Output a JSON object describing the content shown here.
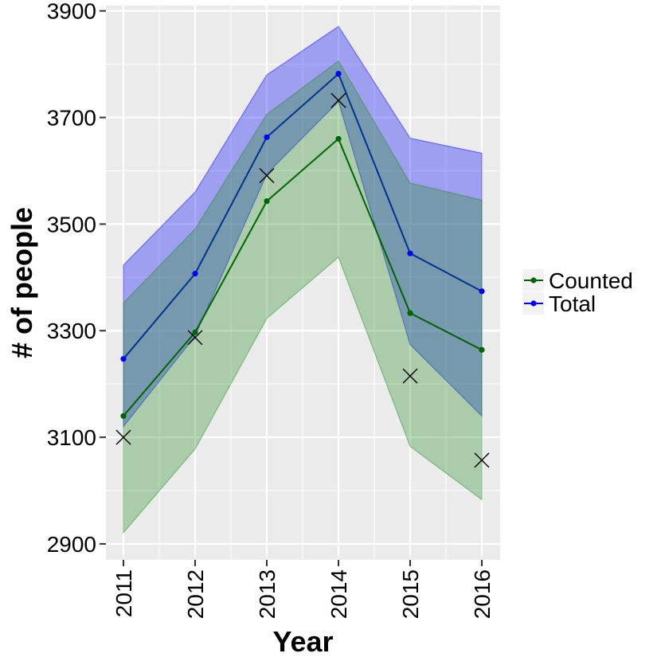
{
  "chart_data": {
    "type": "line",
    "xlabel": "Year",
    "ylabel": "# of people",
    "x": [
      "2011",
      "2012",
      "2013",
      "2014",
      "2015",
      "2016"
    ],
    "ylim": [
      2870,
      3910
    ],
    "y_ticks": [
      "2900",
      "3100",
      "3300",
      "3500",
      "3700",
      "3900"
    ],
    "grid": true,
    "panel_background": "#ebebeb",
    "legend_position": "right",
    "series": [
      {
        "name": "Counted",
        "color": "#006400",
        "band_color": "#228B22",
        "values": [
          3140,
          3297,
          3543,
          3660,
          3333,
          3264
        ],
        "lower": [
          2921,
          3078,
          3323,
          3438,
          3083,
          2983
        ],
        "upper": [
          3352,
          3491,
          3706,
          3806,
          3577,
          3545
        ]
      },
      {
        "name": "Total",
        "color": "#0000ff",
        "band_color": "#0000ff",
        "values": [
          3247,
          3407,
          3663,
          3782,
          3445,
          3374
        ],
        "lower": [
          3120,
          3290,
          3594,
          3730,
          3274,
          3140
        ],
        "upper": [
          3423,
          3560,
          3780,
          3871,
          3661,
          3633
        ]
      }
    ],
    "observed": {
      "marker": "x",
      "color": "#000000",
      "values": [
        3100,
        3287,
        3591,
        3732,
        3215,
        3057
      ]
    }
  }
}
